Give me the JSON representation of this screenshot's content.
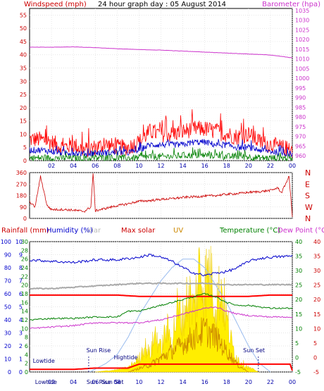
{
  "header": {
    "title": "24 hour graph day : 05 August 2014",
    "left_label": "Windspeed (mph)",
    "right_label": "Barometer (hpa)"
  },
  "lower_header": {
    "rain": "Rainfall (mm)",
    "humidity": "Humidity (%)",
    "solar": "olar",
    "maxsolar": "Max solar",
    "uv": "UV",
    "temperature": "Temperature (°C)",
    "dewpoint": "Dew Point (°C)"
  },
  "colors": {
    "windgust": "#ff0000",
    "windavg": "#0000cc",
    "windlull": "#008000",
    "barometer": "#cc33cc",
    "direction": "#cc0000",
    "temperature": "#008000",
    "dewpoint": "#cc33cc",
    "humidity": "#0000cc",
    "solar": "#ffee00",
    "maxsolar": "#ff0000",
    "uv": "#cc8800",
    "rainfall": "#ff0000",
    "rain_axis": "#0000cc",
    "temp_axis": "#008000",
    "dew_axis": "#cc0000"
  },
  "chart_data": [
    {
      "type": "line",
      "title": "24 hour graph day : 05 August 2014",
      "xlabel": "",
      "ylabel": "Windspeed (mph)",
      "y2label": "Barometer (hpa)",
      "x_ticks": [
        "02",
        "04",
        "06",
        "08",
        "10",
        "12",
        "14",
        "16",
        "18",
        "20",
        "22",
        "00"
      ],
      "y_ticks": [
        0,
        5,
        10,
        15,
        20,
        25,
        30,
        35,
        40,
        45,
        50,
        55
      ],
      "ylim": [
        0,
        57.5
      ],
      "y2_ticks": [
        960,
        965,
        970,
        975,
        980,
        985,
        990,
        995,
        1000,
        1005,
        1010,
        1015,
        1020,
        1025,
        1030,
        1035
      ],
      "y2lim": [
        957.5,
        1036
      ],
      "grid": true,
      "series": [
        {
          "name": "gust",
          "axis": "left",
          "x": [
            0,
            1,
            2,
            3,
            4,
            5,
            6,
            7,
            8,
            9,
            10,
            11,
            12,
            13,
            14,
            15,
            16,
            17,
            18,
            19,
            20,
            21,
            22,
            23,
            24
          ],
          "values": [
            8,
            8,
            7,
            5,
            6,
            4,
            5,
            6,
            5,
            5,
            7,
            11,
            10,
            10,
            11,
            12,
            12,
            11,
            10,
            9,
            10,
            7,
            6,
            5,
            4
          ]
        },
        {
          "name": "average",
          "axis": "left",
          "x": [
            0,
            1,
            2,
            3,
            4,
            5,
            6,
            7,
            8,
            9,
            10,
            11,
            12,
            13,
            14,
            15,
            16,
            17,
            18,
            19,
            20,
            21,
            22,
            23,
            24
          ],
          "values": [
            4,
            4,
            3.5,
            3,
            3,
            2.5,
            3,
            3,
            3,
            3,
            4,
            6,
            6,
            6,
            6,
            7,
            7,
            6,
            6,
            5,
            5,
            4,
            3.5,
            3,
            2.5
          ]
        },
        {
          "name": "lull",
          "axis": "left",
          "x": [
            0,
            1,
            2,
            3,
            4,
            5,
            6,
            7,
            8,
            9,
            10,
            11,
            12,
            13,
            14,
            15,
            16,
            17,
            18,
            19,
            20,
            21,
            22,
            23,
            24
          ],
          "values": [
            1,
            1,
            1,
            1,
            1,
            0.5,
            1,
            1,
            1,
            1,
            1,
            1.5,
            1.5,
            1.5,
            2,
            2,
            2,
            2,
            1.5,
            1.5,
            1.5,
            1,
            1,
            1,
            1
          ]
        },
        {
          "name": "barometer",
          "axis": "right",
          "x": [
            0,
            2,
            4,
            6,
            8,
            10,
            12,
            14,
            16,
            18,
            20,
            22,
            24
          ],
          "values": [
            1016.0,
            1016.0,
            1016.2,
            1015.8,
            1015.2,
            1014.8,
            1014.5,
            1014.0,
            1013.5,
            1013.0,
            1012.5,
            1012.0,
            1010.5
          ]
        }
      ]
    },
    {
      "type": "line",
      "ylabel": "Wind direction",
      "y_ticks": [
        0,
        90,
        180,
        270,
        360
      ],
      "ylim": [
        0,
        360
      ],
      "compass": [
        "N",
        "W",
        "S",
        "E",
        "N"
      ],
      "x_ticks": [
        "02",
        "04",
        "06",
        "08",
        "10",
        "12",
        "14",
        "16",
        "18",
        "20",
        "22",
        "00"
      ],
      "series": [
        {
          "name": "direction",
          "x": [
            0,
            0.5,
            1,
            1.6,
            2,
            3,
            4,
            5,
            5.6,
            5.8,
            6,
            6.5,
            7,
            8,
            9,
            10,
            11,
            12,
            13,
            14,
            15,
            16,
            17,
            18,
            19,
            20,
            21,
            22,
            22.7,
            23,
            23.7,
            24
          ],
          "values": [
            130,
            90,
            330,
            100,
            70,
            70,
            65,
            55,
            90,
            360,
            60,
            70,
            80,
            100,
            115,
            135,
            140,
            150,
            155,
            165,
            170,
            175,
            180,
            190,
            195,
            205,
            210,
            220,
            240,
            200,
            330,
            20
          ]
        }
      ]
    },
    {
      "type": "area",
      "x_ticks": [
        "02",
        "04",
        "06",
        "08",
        "10",
        "12",
        "14",
        "16",
        "18",
        "20",
        "22",
        "00"
      ],
      "rain_ticks": [
        0,
        1,
        2,
        3,
        4,
        5,
        6,
        7,
        8,
        9,
        10
      ],
      "hum_ticks": [
        0,
        10,
        20,
        30,
        40,
        50,
        60,
        70,
        80,
        90,
        100
      ],
      "solar_ticks": [
        0,
        2,
        4,
        6,
        8,
        10,
        12,
        14,
        16,
        18,
        20,
        22,
        24,
        26,
        28,
        30
      ],
      "temp_ticks": [
        -5,
        0,
        5,
        10,
        15,
        20,
        25,
        30,
        35,
        40
      ],
      "dew_ticks": [
        -5,
        0,
        5,
        10,
        15,
        20,
        25,
        30,
        35,
        40
      ],
      "annotations": [
        "Lowtide",
        "Sun Rise",
        "Hightide",
        "Sun Set",
        "Lowtide",
        "Sun Rise",
        "Sun Set"
      ],
      "series": [
        {
          "name": "Humidity",
          "x": [
            0,
            2,
            4,
            6,
            8,
            10,
            11,
            12,
            13,
            14,
            15,
            16,
            17,
            18,
            19,
            20,
            21,
            22,
            24
          ],
          "values": [
            86,
            85,
            84,
            86,
            86,
            88,
            90,
            88,
            85,
            80,
            76,
            74,
            76,
            77,
            80,
            85,
            87,
            88,
            89
          ]
        },
        {
          "name": "Temperature",
          "x": [
            0,
            2,
            4,
            6,
            8,
            9,
            10,
            11,
            12,
            13,
            14,
            15,
            16,
            17,
            18,
            19,
            20,
            22,
            24
          ],
          "values": [
            13,
            13.5,
            13.5,
            14,
            14,
            16,
            16,
            17,
            18,
            19,
            20,
            21,
            22,
            21,
            19,
            18,
            18,
            17,
            17
          ]
        },
        {
          "name": "Dew Point",
          "x": [
            0,
            2,
            4,
            6,
            8,
            10,
            12,
            13,
            14,
            15,
            16,
            17,
            18,
            19,
            20,
            22,
            24
          ],
          "values": [
            10,
            10.5,
            11,
            12,
            12,
            12,
            13,
            14,
            15,
            16,
            17,
            17.5,
            16,
            15,
            14.5,
            14,
            14
          ]
        },
        {
          "name": "Max solar",
          "x": [
            5.5,
            7,
            8,
            9,
            10,
            11,
            12,
            13,
            14,
            15,
            16,
            17,
            18,
            19,
            20,
            21,
            22
          ],
          "values": [
            0,
            2,
            4,
            8,
            13,
            17,
            21,
            24,
            26,
            26,
            24,
            20,
            16,
            11,
            6,
            2,
            0
          ]
        },
        {
          "name": "Solar",
          "x": [
            6,
            8,
            9,
            10,
            10.5,
            11,
            11.5,
            12,
            12.5,
            13,
            13.5,
            14,
            14.5,
            15,
            15.5,
            16,
            16.5,
            17,
            17.5,
            18,
            18.5,
            19,
            20,
            21
          ],
          "values": [
            0,
            0.5,
            1,
            3,
            6,
            4,
            9,
            5,
            10,
            7,
            14,
            12,
            18,
            14,
            23,
            20,
            24,
            15,
            20,
            12,
            6,
            3,
            1,
            0
          ]
        },
        {
          "name": "UV",
          "x": [
            9,
            10,
            11,
            12,
            13,
            14,
            15,
            16,
            17,
            18,
            19,
            20
          ],
          "values": [
            0,
            0.5,
            1,
            2,
            3,
            4,
            5,
            6,
            5,
            3,
            1,
            0
          ]
        },
        {
          "name": "Rainfall",
          "x": [
            0,
            4,
            6,
            8,
            9,
            10,
            12,
            14,
            16,
            18,
            20,
            22,
            23.8,
            24
          ],
          "values": [
            0.2,
            0.2,
            0.3,
            0.3,
            0.3,
            0.6,
            0.6,
            0.6,
            0.6,
            0.6,
            0.6,
            0.6,
            0.6,
            0.1
          ]
        },
        {
          "name": "Grey",
          "x": [
            0,
            2,
            4,
            6,
            8,
            10,
            12,
            14,
            16,
            18,
            20,
            22,
            24
          ],
          "values": [
            64,
            64,
            65,
            66,
            67,
            68,
            68,
            68,
            68,
            67,
            67,
            67,
            67
          ]
        },
        {
          "name": "Red flat",
          "x": [
            0,
            2,
            4,
            6,
            8,
            10,
            12,
            14,
            16,
            18,
            20,
            22,
            24
          ],
          "values": [
            59,
            59,
            59,
            59,
            59,
            58,
            58,
            58,
            58,
            58,
            58,
            59,
            59
          ]
        }
      ]
    }
  ]
}
